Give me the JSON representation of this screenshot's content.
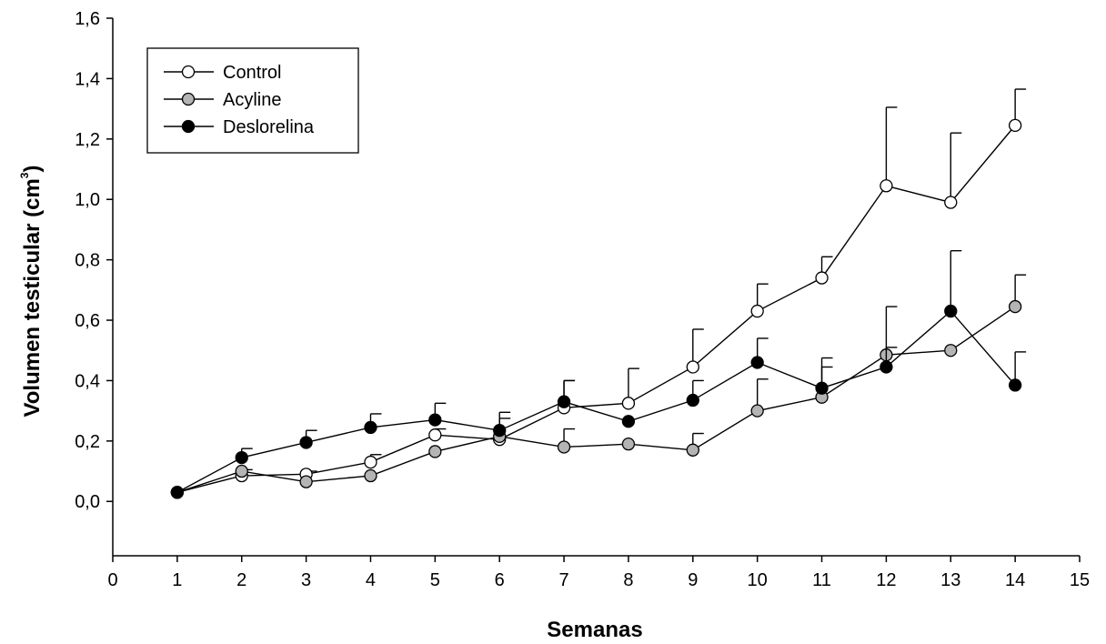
{
  "chart_data": {
    "type": "line",
    "title": "",
    "xlabel": "Semanas",
    "ylabel": "Volumen testicular (cm",
    "ylabel_superscript": "3",
    "ylabel_close": ")",
    "xlim": [
      0,
      15
    ],
    "ylim": [
      -0.18,
      1.6
    ],
    "x_ticks": [
      0,
      1,
      2,
      3,
      4,
      5,
      6,
      7,
      8,
      9,
      10,
      11,
      12,
      13,
      14,
      15
    ],
    "x_tick_labels": [
      "0",
      "1",
      "2",
      "3",
      "4",
      "5",
      "6",
      "7",
      "8",
      "9",
      "10",
      "11",
      "12",
      "13",
      "14",
      "15"
    ],
    "y_ticks": [
      0,
      0.2,
      0.4,
      0.6,
      0.8,
      1.0,
      1.2,
      1.4,
      1.6
    ],
    "y_tick_labels": [
      "0,0",
      "0,2",
      "0,4",
      "0,6",
      "0,8",
      "1,0",
      "1,2",
      "1,4",
      "1,6"
    ],
    "grid": false,
    "legend_position": "top-left",
    "x": [
      1,
      2,
      3,
      4,
      5,
      6,
      7,
      8,
      9,
      10,
      11,
      12,
      13,
      14
    ],
    "series": [
      {
        "name": "Control",
        "marker_fill": "#ffffff",
        "values": [
          0.03,
          0.085,
          0.09,
          0.13,
          0.22,
          0.205,
          0.31,
          0.325,
          0.445,
          0.63,
          0.74,
          1.045,
          0.99,
          1.245
        ],
        "error_upper": [
          0.0,
          0.02,
          0.01,
          0.025,
          0.02,
          0.07,
          0.09,
          0.115,
          0.125,
          0.09,
          0.07,
          0.26,
          0.23,
          0.12
        ]
      },
      {
        "name": "Acyline",
        "marker_fill": "#b4b4b4",
        "values": [
          0.03,
          0.1,
          0.065,
          0.085,
          0.165,
          0.215,
          0.18,
          0.19,
          0.17,
          0.3,
          0.345,
          0.485,
          0.5,
          0.645
        ],
        "error_upper": [
          0.0,
          0.0,
          0.0,
          0.0,
          0.0,
          0.0,
          0.06,
          0.0,
          0.055,
          0.105,
          0.1,
          0.025,
          0.0,
          0.105
        ]
      },
      {
        "name": "Deslorelina",
        "marker_fill": "#000000",
        "values": [
          0.03,
          0.145,
          0.195,
          0.245,
          0.27,
          0.235,
          0.33,
          0.265,
          0.335,
          0.46,
          0.375,
          0.445,
          0.63,
          0.385
        ],
        "error_upper": [
          0.0,
          0.03,
          0.04,
          0.045,
          0.055,
          0.06,
          0.07,
          0.0,
          0.065,
          0.08,
          0.1,
          0.2,
          0.2,
          0.11
        ]
      }
    ]
  }
}
